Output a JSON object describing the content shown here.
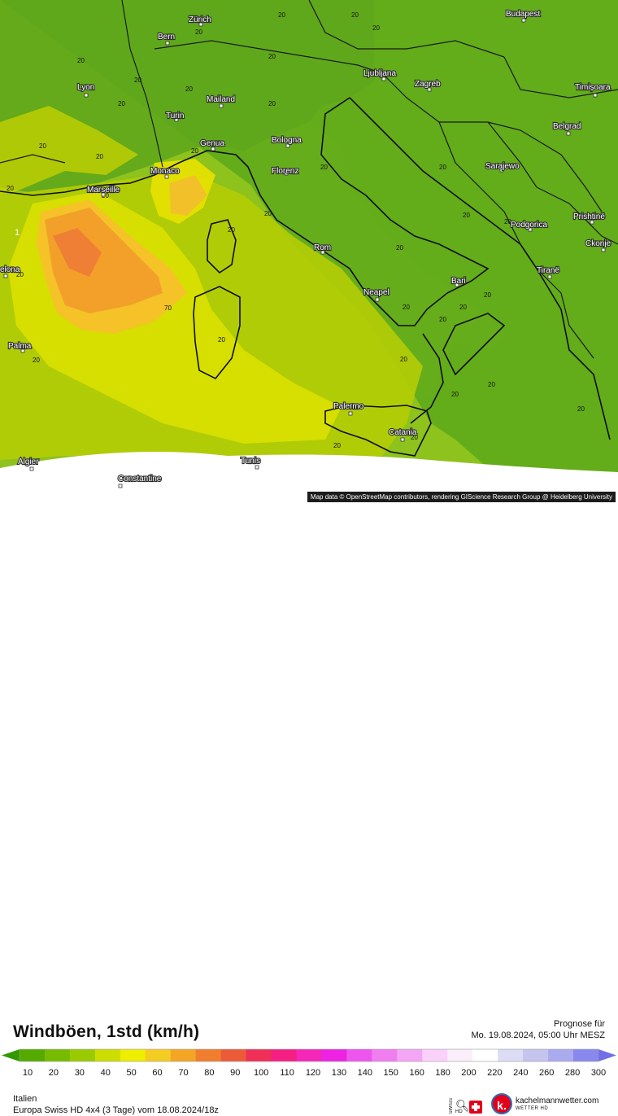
{
  "map": {
    "attribution": "Map data © OpenStreetMap contributors, rendering GIScience Research Group @ Heidelberg University",
    "cities": [
      {
        "name": "Zürich"
      },
      {
        "name": "Bern"
      },
      {
        "name": "Lyon"
      },
      {
        "name": "Turin"
      },
      {
        "name": "Mailand"
      },
      {
        "name": "Genua"
      },
      {
        "name": "Monaco"
      },
      {
        "name": "Marseille"
      },
      {
        "name": "Bologna"
      },
      {
        "name": "Florenz"
      },
      {
        "name": "Rom"
      },
      {
        "name": "Neapel"
      },
      {
        "name": "Bari"
      },
      {
        "name": "Palermo"
      },
      {
        "name": "Catania"
      },
      {
        "name": "Ljubljana"
      },
      {
        "name": "Zagreb"
      },
      {
        "name": "Budapest"
      },
      {
        "name": "Timișoara"
      },
      {
        "name": "Belgrad"
      },
      {
        "name": "Sarajewo"
      },
      {
        "name": "Podgorica"
      },
      {
        "name": "Prishtinë"
      },
      {
        "name": "Tiranë"
      },
      {
        "name": "Ckonje"
      },
      {
        "name": "Palma"
      },
      {
        "name": "Algier"
      },
      {
        "name": "Constantine"
      },
      {
        "name": "Tunis"
      },
      {
        "name": "elona"
      }
    ],
    "isoline_label": "20",
    "isoline_label_high": "70",
    "coast_value_label": "1"
  },
  "header": {
    "title": "Windböen, 1std (km/h)",
    "forecast_label": "Prognose für",
    "forecast_time": "Mo. 19.08.2024, 05:00 Uhr MESZ"
  },
  "scale": {
    "labels": [
      "10",
      "20",
      "30",
      "40",
      "50",
      "60",
      "70",
      "80",
      "90",
      "100",
      "110",
      "120",
      "130",
      "140",
      "150",
      "160",
      "180",
      "200",
      "220",
      "240",
      "260",
      "280",
      "300"
    ],
    "colors": [
      "#339900",
      "#55aa00",
      "#77bb00",
      "#99cc00",
      "#ccdd00",
      "#eeee00",
      "#f5cc22",
      "#f4a524",
      "#f07e2e",
      "#ec5a38",
      "#ef2f55",
      "#f51e82",
      "#f526b8",
      "#ee22e2",
      "#ee55ee",
      "#f17ef1",
      "#f5a5f5",
      "#fbd1fb",
      "#fbeefb",
      "#ffffff",
      "#dcdcf5",
      "#c4c4ee",
      "#aaaaee",
      "#8888ee",
      "#6f6fe8"
    ]
  },
  "footer": {
    "region": "Italien",
    "model": "Europa Swiss HD 4x4 (3 Tage) vom 18.08.2024/18z",
    "badge_swiss": "SWISS",
    "badge_hd": "HD",
    "logo_letter": "k.",
    "logo_name": "kachelmannwetter.com",
    "logo_sub": "WETTER HD"
  }
}
